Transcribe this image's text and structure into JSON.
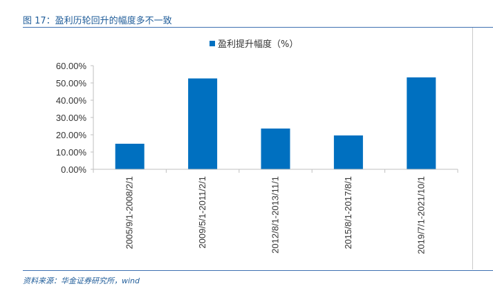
{
  "figure": {
    "title": "图 17：盈利历轮回升的幅度多不一致",
    "source": "资料来源：华金证券研究所，wind"
  },
  "chart_data": {
    "type": "bar",
    "categories": [
      "2005/9/1-2008/2/1",
      "2009/5/1-2011/2/1",
      "2012/8/1-2013/11/1",
      "2015/8/1-2017/8/1",
      "2019/7/1-2021/10/1"
    ],
    "series": [
      {
        "name": "盈利提升幅度（%）",
        "values": [
          14.8,
          52.6,
          23.6,
          19.6,
          53.2
        ]
      }
    ],
    "ylim": [
      0,
      60
    ],
    "yticks": [
      "0.00%",
      "10.00%",
      "20.00%",
      "30.00%",
      "40.00%",
      "50.00%",
      "60.00%"
    ],
    "bar_color": "#0070c0",
    "legend": "top",
    "grid": false
  }
}
